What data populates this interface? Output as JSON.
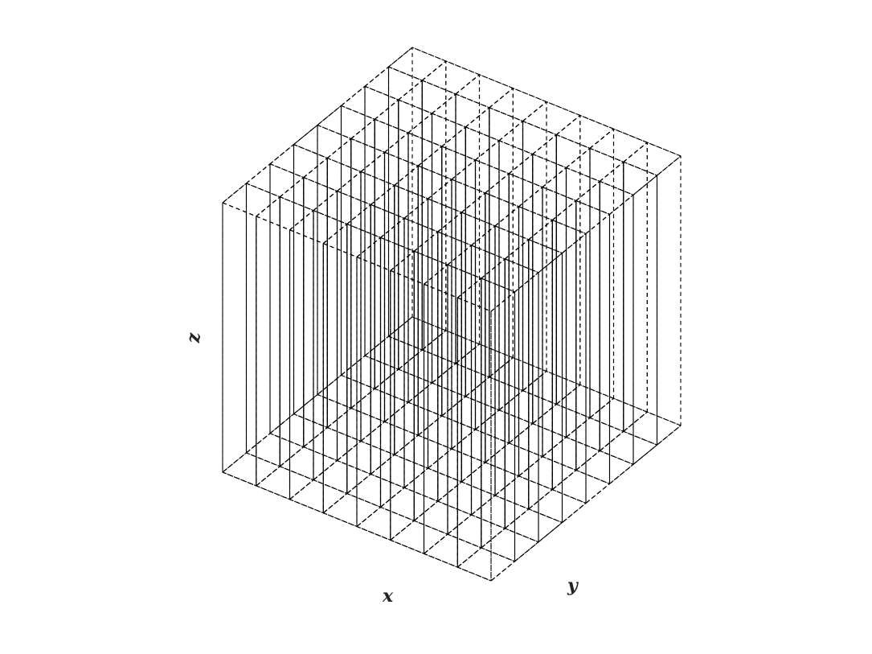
{
  "figure": {
    "grid": {
      "nx": 8,
      "ny": 8,
      "nz": 1
    },
    "axes": {
      "x_label": "x",
      "y_label": "y",
      "z_label": "z"
    },
    "opacity": 0.62,
    "edge_style": "dashed",
    "edge_color": "#000000",
    "background": "#ffffff"
  },
  "columns": [
    [
      "#b25ac0",
      "#c87838",
      "#58b8a0",
      "#98c4d8",
      "#78c0c8",
      "#4a62e0",
      "#5a9a88",
      "#78d478"
    ],
    [
      "#c45a68",
      "#e08838",
      "#40c8e0",
      "#60b8c0",
      "#98b8b0",
      "#88a0e0",
      "#98c078",
      "#a8f088"
    ],
    [
      "#a8d060",
      "#bcbc98",
      "#b0e0e0",
      "#d8e048",
      "#e0e8f0",
      "#e85a78",
      "#5058d8",
      "#d060e0"
    ],
    [
      "#c8a0c0",
      "#60a890",
      "#7070e8",
      "#c8e8f0",
      "#f0d8a8",
      "#70c8e8",
      "#c0c898",
      "#c0a8d8"
    ],
    [
      "#f0b8e8",
      "#c060c8",
      "#6a3a98",
      "#60a0e8",
      "#c8b870",
      "#c87888",
      "#e0d8e8",
      "#c0a0e0"
    ],
    [
      "#f070c0",
      "#c84088",
      "#d098c8",
      "#7070a8",
      "#48a8d8",
      "#e06088",
      "#e0c8d0",
      "#c8e0f0"
    ],
    [
      "#f0c8c0",
      "#70a8d8",
      "#38c8e8",
      "#c040b8",
      "#70e0a0",
      "#b0c898",
      "#70a8e8",
      "#48e8c8"
    ],
    [
      "#a070a0",
      "#b090b8",
      "#8848e8",
      "#d8e070",
      "#70e8a0",
      "#b8d0c8",
      "#b8c880",
      "#b8d080"
    ]
  ]
}
